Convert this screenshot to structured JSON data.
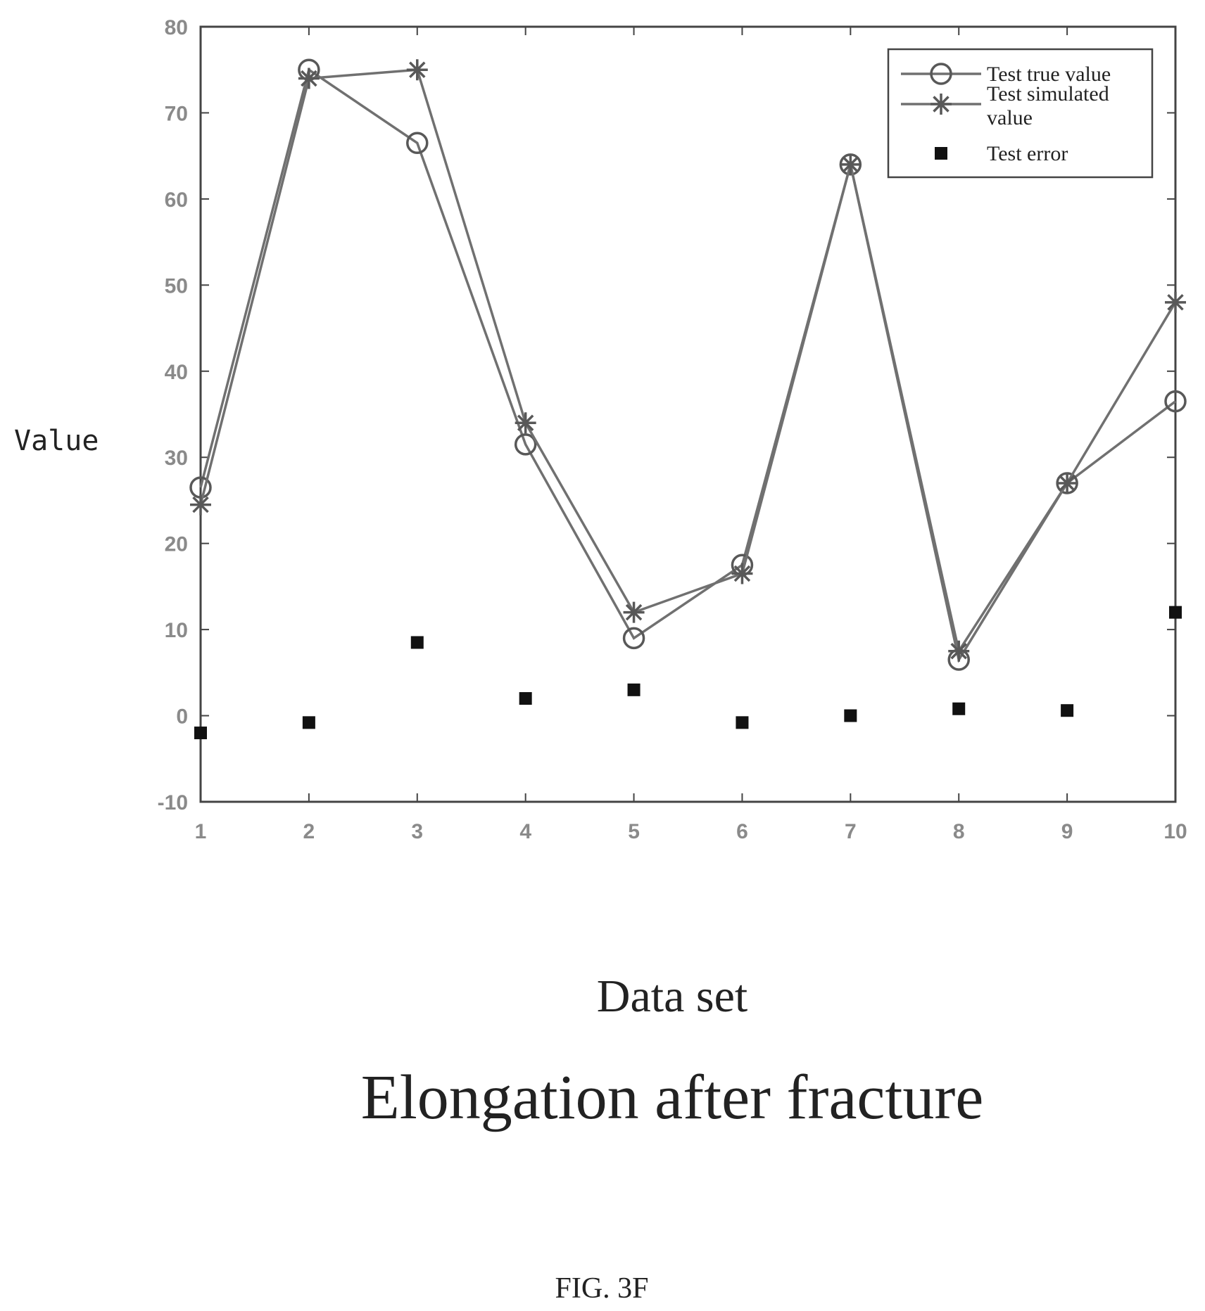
{
  "chart_data": {
    "type": "line",
    "title": "Elongation after fracture",
    "xlabel": "Data set",
    "ylabel": "Value",
    "x": [
      1,
      2,
      3,
      4,
      5,
      6,
      7,
      8,
      9,
      10
    ],
    "xlim": [
      1,
      10
    ],
    "ylim": [
      -10,
      80
    ],
    "xticks": [
      "1",
      "2",
      "3",
      "4",
      "5",
      "6",
      "7",
      "8",
      "9",
      "10"
    ],
    "yticks": [
      "-10",
      "0",
      "10",
      "20",
      "30",
      "40",
      "50",
      "60",
      "70",
      "80"
    ],
    "grid": false,
    "legend_position": "top-right",
    "series": [
      {
        "name": "Test true value",
        "marker": "circle",
        "values": [
          26.5,
          75,
          66.5,
          31.5,
          9,
          17.5,
          64,
          6.5,
          27,
          36.5
        ]
      },
      {
        "name": "Test simulated value",
        "marker": "star",
        "values": [
          24.5,
          74,
          75,
          34,
          12,
          16.5,
          64,
          7.5,
          27,
          48
        ]
      },
      {
        "name": "Test error",
        "marker": "square",
        "values": [
          -2,
          -0.8,
          8.5,
          2,
          3,
          -0.8,
          0,
          0.8,
          0.6,
          12
        ]
      }
    ],
    "colors": {
      "line": "#707070",
      "marker": "#585858",
      "error": "#111111",
      "axis": "#444444",
      "tick_text": "#8a8a8a"
    }
  },
  "figure_label": "FIG. 3F"
}
